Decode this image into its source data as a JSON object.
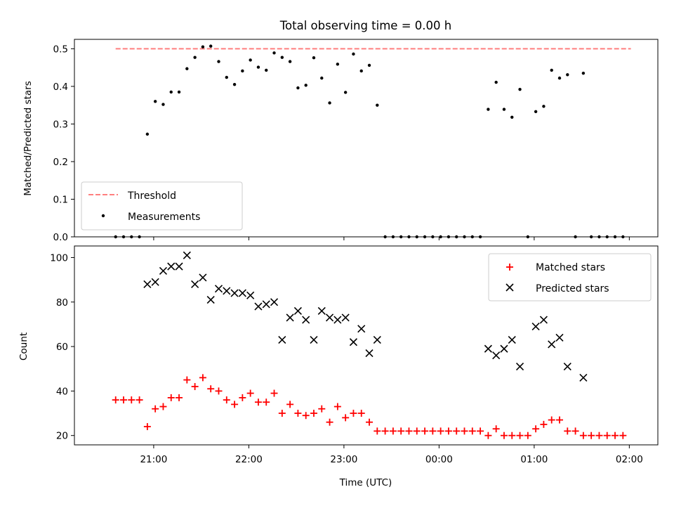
{
  "chart_data": [
    {
      "type": "scatter",
      "title": "Total observing time = 0.00 h",
      "ylabel": "Matched/Predicted stars",
      "xlabel": "",
      "x_is_time": true,
      "xlim": [
        "20:10",
        "02:18"
      ],
      "ylim": [
        0,
        0.525
      ],
      "yticks": [
        "0.0",
        "0.1",
        "0.2",
        "0.3",
        "0.4",
        "0.5"
      ],
      "ytick_values": [
        0,
        0.1,
        0.2,
        0.3,
        0.4,
        0.5
      ],
      "legend_position": "lower-left",
      "grid": false,
      "threshold": {
        "name": "Threshold",
        "value": 0.5,
        "x_start": "20:36",
        "x_end": "02:01",
        "color": "#ff7f7f"
      },
      "series": [
        {
          "name": "Measurements",
          "marker": "dot",
          "color": "#000000",
          "points": [
            [
              "20:36",
              0.0
            ],
            [
              "20:41",
              0.0
            ],
            [
              "20:46",
              0.0
            ],
            [
              "20:51",
              0.0
            ],
            [
              "20:56",
              0.273
            ],
            [
              "21:01",
              0.36
            ],
            [
              "21:06",
              0.352
            ],
            [
              "21:11",
              0.385
            ],
            [
              "21:16",
              0.385
            ],
            [
              "21:21",
              0.447
            ],
            [
              "21:26",
              0.477
            ],
            [
              "21:31",
              0.505
            ],
            [
              "21:36",
              0.507
            ],
            [
              "21:41",
              0.466
            ],
            [
              "21:46",
              0.424
            ],
            [
              "21:51",
              0.405
            ],
            [
              "21:56",
              0.441
            ],
            [
              "22:01",
              0.47
            ],
            [
              "22:06",
              0.451
            ],
            [
              "22:11",
              0.443
            ],
            [
              "22:16",
              0.489
            ],
            [
              "22:21",
              0.477
            ],
            [
              "22:26",
              0.466
            ],
            [
              "22:31",
              0.396
            ],
            [
              "22:36",
              0.403
            ],
            [
              "22:41",
              0.476
            ],
            [
              "22:46",
              0.422
            ],
            [
              "22:51",
              0.356
            ],
            [
              "22:56",
              0.459
            ],
            [
              "23:01",
              0.384
            ],
            [
              "23:06",
              0.486
            ],
            [
              "23:11",
              0.441
            ],
            [
              "23:16",
              0.456
            ],
            [
              "23:21",
              0.35
            ],
            [
              "23:26",
              0.0
            ],
            [
              "23:31",
              0.0
            ],
            [
              "23:36",
              0.0
            ],
            [
              "23:41",
              0.0
            ],
            [
              "23:46",
              0.0
            ],
            [
              "23:51",
              0.0
            ],
            [
              "23:56",
              0.0
            ],
            [
              "00:01",
              0.0
            ],
            [
              "00:06",
              0.0
            ],
            [
              "00:11",
              0.0
            ],
            [
              "00:16",
              0.0
            ],
            [
              "00:21",
              0.0
            ],
            [
              "00:26",
              0.0
            ],
            [
              "00:31",
              0.339
            ],
            [
              "00:36",
              0.411
            ],
            [
              "00:41",
              0.339
            ],
            [
              "00:46",
              0.318
            ],
            [
              "00:51",
              0.392
            ],
            [
              "00:56",
              0.0
            ],
            [
              "01:01",
              0.333
            ],
            [
              "01:06",
              0.347
            ],
            [
              "01:11",
              0.443
            ],
            [
              "01:16",
              0.422
            ],
            [
              "01:21",
              0.431
            ],
            [
              "01:26",
              0.0
            ],
            [
              "01:31",
              0.435
            ],
            [
              "01:36",
              0.0
            ],
            [
              "01:41",
              0.0
            ],
            [
              "01:46",
              0.0
            ],
            [
              "01:51",
              0.0
            ],
            [
              "01:56",
              0.0
            ]
          ]
        }
      ]
    },
    {
      "type": "scatter",
      "title": "",
      "xlabel": "Time (UTC)",
      "ylabel": "Count",
      "x_is_time": true,
      "xlim": [
        "20:10",
        "02:18"
      ],
      "ylim": [
        15.8,
        105.2
      ],
      "xticks": [
        "21:00",
        "22:00",
        "23:00",
        "00:00",
        "01:00",
        "02:00"
      ],
      "yticks": [
        "20",
        "40",
        "60",
        "80",
        "100"
      ],
      "ytick_values": [
        20,
        40,
        60,
        80,
        100
      ],
      "legend_position": "upper-right",
      "grid": false,
      "series": [
        {
          "name": "Matched stars",
          "marker": "plus",
          "color": "#ff0000",
          "points": [
            [
              "20:36",
              36
            ],
            [
              "20:41",
              36
            ],
            [
              "20:46",
              36
            ],
            [
              "20:51",
              36
            ],
            [
              "20:56",
              24
            ],
            [
              "21:01",
              32
            ],
            [
              "21:06",
              33
            ],
            [
              "21:11",
              37
            ],
            [
              "21:16",
              37
            ],
            [
              "21:21",
              45
            ],
            [
              "21:26",
              42
            ],
            [
              "21:31",
              46
            ],
            [
              "21:36",
              41
            ],
            [
              "21:41",
              40
            ],
            [
              "21:46",
              36
            ],
            [
              "21:51",
              34
            ],
            [
              "21:56",
              37
            ],
            [
              "22:01",
              39
            ],
            [
              "22:06",
              35
            ],
            [
              "22:11",
              35
            ],
            [
              "22:16",
              39
            ],
            [
              "22:21",
              30
            ],
            [
              "22:26",
              34
            ],
            [
              "22:31",
              30
            ],
            [
              "22:36",
              29
            ],
            [
              "22:41",
              30
            ],
            [
              "22:46",
              32
            ],
            [
              "22:51",
              26
            ],
            [
              "22:56",
              33
            ],
            [
              "23:01",
              28
            ],
            [
              "23:06",
              30
            ],
            [
              "23:11",
              30
            ],
            [
              "23:16",
              26
            ],
            [
              "23:21",
              22
            ],
            [
              "23:26",
              22
            ],
            [
              "23:31",
              22
            ],
            [
              "23:36",
              22
            ],
            [
              "23:41",
              22
            ],
            [
              "23:46",
              22
            ],
            [
              "23:51",
              22
            ],
            [
              "23:56",
              22
            ],
            [
              "00:01",
              22
            ],
            [
              "00:06",
              22
            ],
            [
              "00:11",
              22
            ],
            [
              "00:16",
              22
            ],
            [
              "00:21",
              22
            ],
            [
              "00:26",
              22
            ],
            [
              "00:31",
              20
            ],
            [
              "00:36",
              23
            ],
            [
              "00:41",
              20
            ],
            [
              "00:46",
              20
            ],
            [
              "00:51",
              20
            ],
            [
              "00:56",
              20
            ],
            [
              "01:01",
              23
            ],
            [
              "01:06",
              25
            ],
            [
              "01:11",
              27
            ],
            [
              "01:16",
              27
            ],
            [
              "01:21",
              22
            ],
            [
              "01:26",
              22
            ],
            [
              "01:31",
              20
            ],
            [
              "01:36",
              20
            ],
            [
              "01:41",
              20
            ],
            [
              "01:46",
              20
            ],
            [
              "01:51",
              20
            ],
            [
              "01:56",
              20
            ]
          ]
        },
        {
          "name": "Predicted stars",
          "marker": "x",
          "color": "#000000",
          "points": [
            [
              "20:56",
              88
            ],
            [
              "21:01",
              89
            ],
            [
              "21:06",
              94
            ],
            [
              "21:11",
              96
            ],
            [
              "21:16",
              96
            ],
            [
              "21:21",
              101
            ],
            [
              "21:26",
              88
            ],
            [
              "21:31",
              91
            ],
            [
              "21:36",
              81
            ],
            [
              "21:41",
              86
            ],
            [
              "21:46",
              85
            ],
            [
              "21:51",
              84
            ],
            [
              "21:56",
              84
            ],
            [
              "22:01",
              83
            ],
            [
              "22:06",
              78
            ],
            [
              "22:11",
              79
            ],
            [
              "22:16",
              80
            ],
            [
              "22:21",
              63
            ],
            [
              "22:26",
              73
            ],
            [
              "22:31",
              76
            ],
            [
              "22:36",
              72
            ],
            [
              "22:41",
              63
            ],
            [
              "22:46",
              76
            ],
            [
              "22:51",
              73
            ],
            [
              "22:56",
              72
            ],
            [
              "23:01",
              73
            ],
            [
              "23:06",
              62
            ],
            [
              "23:11",
              68
            ],
            [
              "23:16",
              57
            ],
            [
              "23:21",
              63
            ],
            [
              "00:31",
              59
            ],
            [
              "00:36",
              56
            ],
            [
              "00:41",
              59
            ],
            [
              "00:46",
              63
            ],
            [
              "00:51",
              51
            ],
            [
              "01:01",
              69
            ],
            [
              "01:06",
              72
            ],
            [
              "01:11",
              61
            ],
            [
              "01:16",
              64
            ],
            [
              "01:21",
              51
            ],
            [
              "01:31",
              46
            ]
          ]
        }
      ]
    }
  ]
}
